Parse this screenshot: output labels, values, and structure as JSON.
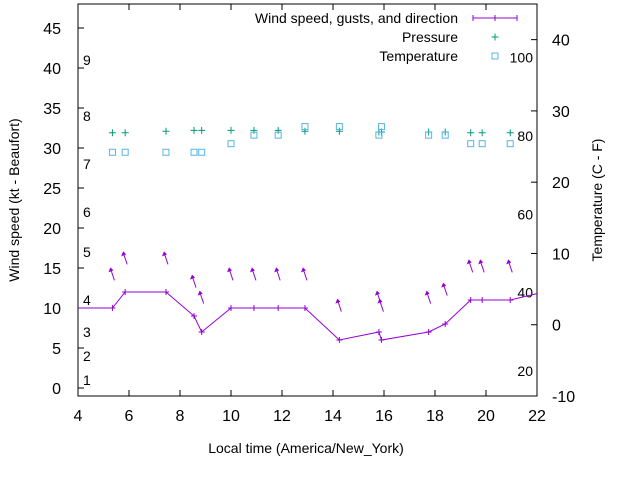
{
  "chart_data": {
    "type": "line",
    "xlabel": "Local time (America/New_York)",
    "ylabel_left": "Wind speed (kt - Beaufort)",
    "ylabel_right": "Temperature (C - F)",
    "xlim": [
      4,
      22
    ],
    "ylim_left": [
      -1,
      48
    ],
    "ylim_right": [
      -10,
      45
    ],
    "x_ticks": [
      4,
      6,
      8,
      10,
      12,
      14,
      16,
      18,
      20,
      22
    ],
    "y_left_ticks": [
      0,
      5,
      10,
      15,
      20,
      25,
      30,
      35,
      40,
      45
    ],
    "y_right_ticks": [
      -10,
      0,
      10,
      20,
      30,
      40
    ],
    "beaufort_labels": [
      {
        "label": "1",
        "y": 1
      },
      {
        "label": "2",
        "y": 4
      },
      {
        "label": "3",
        "y": 7
      },
      {
        "label": "4",
        "y": 11
      },
      {
        "label": "5",
        "y": 17
      },
      {
        "label": "6",
        "y": 22
      },
      {
        "label": "7",
        "y": 28
      },
      {
        "label": "8",
        "y": 34
      },
      {
        "label": "9",
        "y": 41
      }
    ],
    "fahrenheit_labels": [
      {
        "label": "20",
        "y": -6.5
      },
      {
        "label": "40",
        "y": 4.5
      },
      {
        "label": "60",
        "y": 15.5
      },
      {
        "label": "80",
        "y": 26.5
      },
      {
        "label": "100",
        "y": 37.5
      }
    ],
    "legend": [
      {
        "label": "Wind speed, gusts, and direction",
        "color": "#9400d3"
      },
      {
        "label": "Pressure",
        "color": "#009e73"
      },
      {
        "label": "Temperature",
        "color": "#56b4e9"
      }
    ],
    "series": [
      {
        "name": "Wind speed, gusts, and direction",
        "color": "#9400d3",
        "x": [
          4.0,
          5.35,
          5.85,
          7.45,
          8.55,
          8.85,
          10.0,
          10.9,
          11.85,
          12.9,
          14.25,
          15.8,
          15.9,
          17.75,
          18.4,
          19.4,
          19.85,
          20.95,
          22.0
        ],
        "y": [
          10,
          10,
          12,
          12,
          9,
          7,
          10,
          10,
          10,
          10,
          6,
          7,
          6,
          7,
          8,
          11,
          11,
          11,
          11.8
        ]
      },
      {
        "name": "Pressure",
        "color": "#009e73",
        "x": [
          5.35,
          5.85,
          7.45,
          8.55,
          8.85,
          10.0,
          10.9,
          11.85,
          12.9,
          14.25,
          15.8,
          15.9,
          17.75,
          18.4,
          19.4,
          19.85,
          20.95
        ],
        "y": [
          31.9,
          31.9,
          32.1,
          32.2,
          32.2,
          32.2,
          32.2,
          32.2,
          32.1,
          32.1,
          32.0,
          32.0,
          32.0,
          32.0,
          31.9,
          31.9,
          31.9
        ]
      },
      {
        "name": "Temperature",
        "color": "#56b4e9",
        "axis": "right",
        "x": [
          5.35,
          5.85,
          7.45,
          8.55,
          8.85,
          10.0,
          10.9,
          11.85,
          12.9,
          14.25,
          15.8,
          15.9,
          17.75,
          18.4,
          19.4,
          19.85,
          20.95
        ],
        "y": [
          24.2,
          24.2,
          24.2,
          24.2,
          24.2,
          25.4,
          26.6,
          26.6,
          27.8,
          27.8,
          26.6,
          27.8,
          26.6,
          26.6,
          25.4,
          25.4,
          25.4
        ]
      }
    ],
    "wind_arrows": [
      {
        "x": 5.35,
        "y": 14.2
      },
      {
        "x": 5.85,
        "y": 16.2
      },
      {
        "x": 7.45,
        "y": 16.2
      },
      {
        "x": 8.55,
        "y": 13.3
      },
      {
        "x": 8.85,
        "y": 11.3
      },
      {
        "x": 10.0,
        "y": 14.2
      },
      {
        "x": 10.9,
        "y": 14.2
      },
      {
        "x": 11.85,
        "y": 14.2
      },
      {
        "x": 12.9,
        "y": 14.2
      },
      {
        "x": 14.25,
        "y": 10.3
      },
      {
        "x": 15.8,
        "y": 11.3
      },
      {
        "x": 15.9,
        "y": 10.3
      },
      {
        "x": 17.75,
        "y": 11.3
      },
      {
        "x": 18.4,
        "y": 12.3
      },
      {
        "x": 19.4,
        "y": 15.2
      },
      {
        "x": 19.85,
        "y": 15.2
      },
      {
        "x": 20.95,
        "y": 15.2
      }
    ]
  }
}
